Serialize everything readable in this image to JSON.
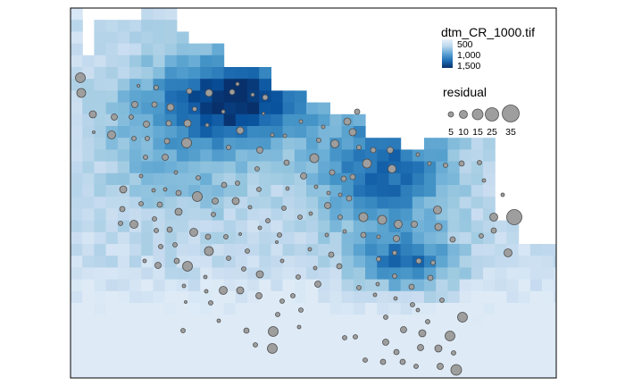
{
  "legend": {
    "raster_title": "dtm_CR_1000.tif",
    "raster_labels": [
      "500",
      "1,000",
      "1,500"
    ],
    "raster_colors": [
      "#deebf7",
      "#9ecae1",
      "#4292c6",
      "#08519c",
      "#08306b"
    ],
    "bubble_title": "residual",
    "bubble_labels": [
      "5",
      "10",
      "15",
      "25",
      "35"
    ]
  },
  "symbols": {
    "point_fill": "#9e9e9e",
    "point_stroke": "#4d4d4d"
  }
}
